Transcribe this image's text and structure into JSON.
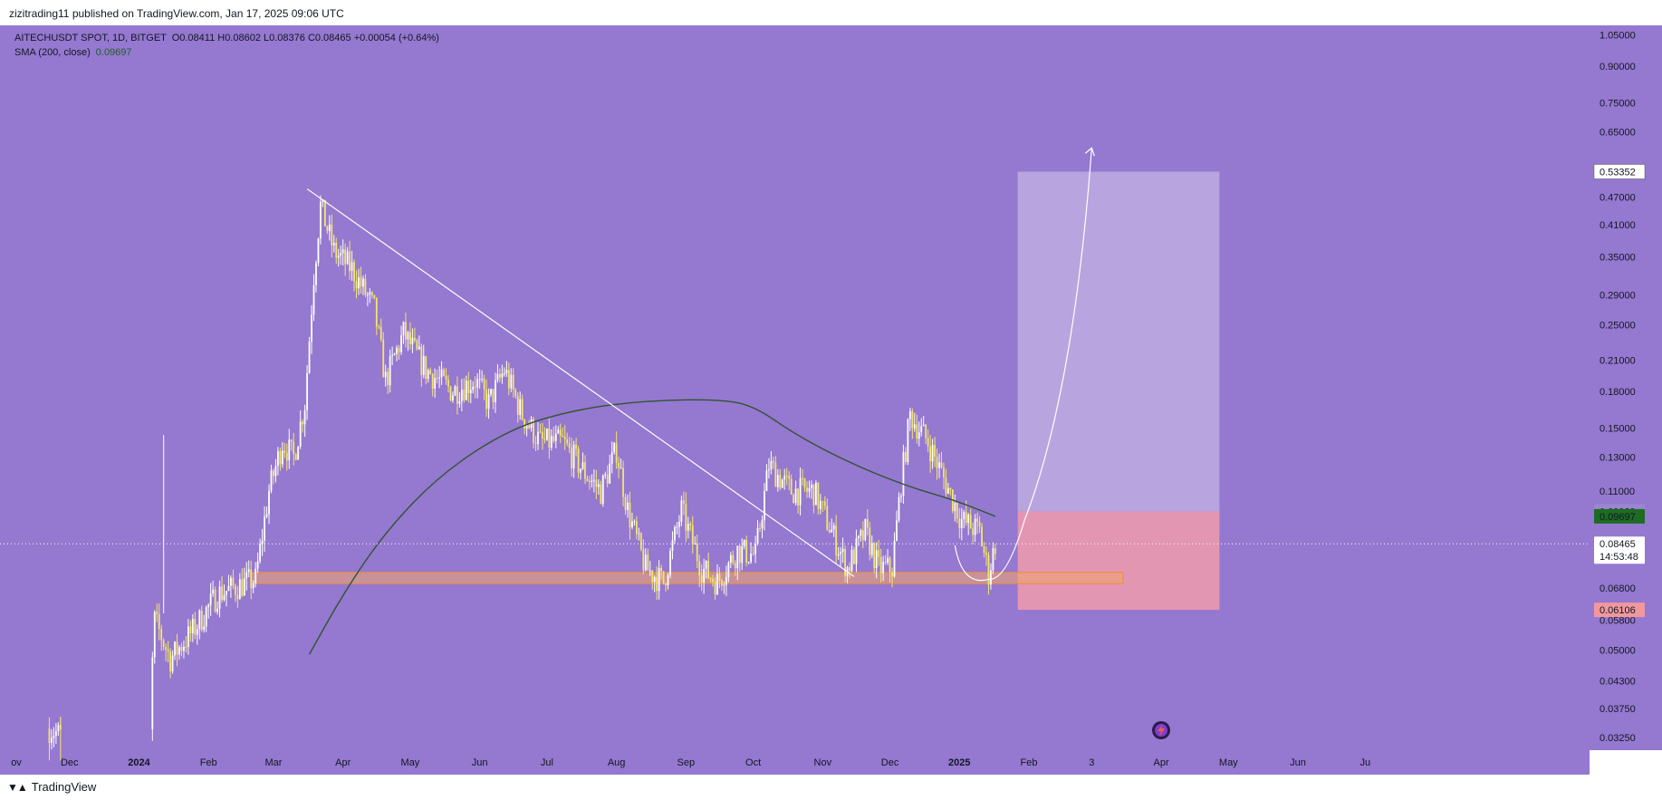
{
  "header": {
    "published": "zizitrading11 published on TradingView.com, Jan 17, 2025 09:06 UTC"
  },
  "footer": {
    "brand": "TradingView"
  },
  "legend": {
    "symbol": "AITECHUSDT SPOT, 1D, BITGET",
    "ohlc": "O0.08411 H0.08602 L0.08376 C0.08465 +0.00054 (+0.64%)",
    "indicator_name": "SMA (200, close)",
    "indicator_value": "0.09697"
  },
  "colors": {
    "background": "#9578d0",
    "candle_up": "#ffffff",
    "candle_down": "#f4e66a",
    "sma": "#2f5530",
    "trendline": "#ffffff",
    "support_zone": "#f2a86a",
    "target_zone": "#b9a6de",
    "stop_zone": "#e396b2",
    "sma_badge": "#1e6b24",
    "stop_badge": "#f0989e"
  },
  "chart_data": {
    "type": "candlestick",
    "x_axis": {
      "labels": [
        "ov",
        "Dec",
        "2024",
        "Feb",
        "Mar",
        "Apr",
        "May",
        "Jun",
        "Jul",
        "Aug",
        "Sep",
        "Oct",
        "Nov",
        "Dec",
        "2025",
        "Feb",
        "3",
        "Apr",
        "May",
        "Jun",
        "Ju"
      ]
    },
    "y_axis": {
      "scale": "log",
      "ticks": [
        "1.05000",
        "0.90000",
        "0.75000",
        "0.65000",
        "0.47000",
        "0.41000",
        "0.35000",
        "0.29000",
        "0.25000",
        "0.21000",
        "0.18000",
        "0.15000",
        "0.13000",
        "0.11000",
        "0.06800",
        "0.05800",
        "0.05000",
        "0.04300",
        "0.03750",
        "0.03250"
      ],
      "range": [
        0.0305,
        1.1
      ]
    },
    "price_markers": [
      {
        "value": 0.53352,
        "label": "0.53352",
        "role": "target"
      },
      {
        "value": 0.09939,
        "label": "0.09939",
        "role": "last-high"
      },
      {
        "value": 0.09697,
        "label": "0.09697",
        "role": "sma"
      },
      {
        "value": 0.08465,
        "label": "0.08465",
        "role": "last-price"
      },
      {
        "value": 0.06106,
        "label": "0.06106",
        "role": "stop"
      }
    ],
    "countdown": "14:53:48",
    "price_path": [
      [
        "2023-11-22",
        0.034
      ],
      [
        "2023-12-20",
        0.028
      ],
      [
        "2024-01-05",
        0.031
      ],
      [
        "2024-01-08",
        0.058
      ],
      [
        "2024-01-15",
        0.048
      ],
      [
        "2024-01-25",
        0.055
      ],
      [
        "2024-02-05",
        0.066
      ],
      [
        "2024-02-15",
        0.069
      ],
      [
        "2024-02-22",
        0.071
      ],
      [
        "2024-02-28",
        0.11
      ],
      [
        "2024-03-05",
        0.14
      ],
      [
        "2024-03-10",
        0.13
      ],
      [
        "2024-03-15",
        0.17
      ],
      [
        "2024-03-19",
        0.32
      ],
      [
        "2024-03-22",
        0.45
      ],
      [
        "2024-03-28",
        0.36
      ],
      [
        "2024-04-05",
        0.33
      ],
      [
        "2024-04-15",
        0.27
      ],
      [
        "2024-04-20",
        0.19
      ],
      [
        "2024-04-28",
        0.24
      ],
      [
        "2024-05-08",
        0.2
      ],
      [
        "2024-05-20",
        0.18
      ],
      [
        "2024-05-30",
        0.19
      ],
      [
        "2024-06-05",
        0.17
      ],
      [
        "2024-06-12",
        0.2
      ],
      [
        "2024-06-20",
        0.16
      ],
      [
        "2024-06-28",
        0.14
      ],
      [
        "2024-07-08",
        0.14
      ],
      [
        "2024-07-18",
        0.12
      ],
      [
        "2024-07-25",
        0.11
      ],
      [
        "2024-08-01",
        0.135
      ],
      [
        "2024-08-06",
        0.1
      ],
      [
        "2024-08-14",
        0.075
      ],
      [
        "2024-08-22",
        0.07
      ],
      [
        "2024-08-30",
        0.1
      ],
      [
        "2024-09-08",
        0.075
      ],
      [
        "2024-09-15",
        0.07
      ],
      [
        "2024-09-24",
        0.082
      ],
      [
        "2024-10-02",
        0.08
      ],
      [
        "2024-10-08",
        0.125
      ],
      [
        "2024-10-18",
        0.11
      ],
      [
        "2024-10-28",
        0.11
      ],
      [
        "2024-11-05",
        0.09
      ],
      [
        "2024-11-12",
        0.075
      ],
      [
        "2024-11-20",
        0.09
      ],
      [
        "2024-11-26",
        0.075
      ],
      [
        "2024-12-02",
        0.075
      ],
      [
        "2024-12-06",
        0.115
      ],
      [
        "2024-12-10",
        0.16
      ],
      [
        "2024-12-18",
        0.14
      ],
      [
        "2024-12-24",
        0.12
      ],
      [
        "2025-01-02",
        0.095
      ],
      [
        "2025-01-10",
        0.09
      ],
      [
        "2025-01-14",
        0.073
      ],
      [
        "2025-01-17",
        0.085
      ]
    ],
    "sma_path": [
      [
        "2024-03-17",
        0.049
      ],
      [
        "2024-04-01",
        0.066
      ],
      [
        "2024-04-20",
        0.09
      ],
      [
        "2024-05-15",
        0.12
      ],
      [
        "2024-06-15",
        0.15
      ],
      [
        "2024-07-15",
        0.165
      ],
      [
        "2024-08-15",
        0.172
      ],
      [
        "2024-09-15",
        0.173
      ],
      [
        "2024-10-01",
        0.168
      ],
      [
        "2024-10-20",
        0.145
      ],
      [
        "2024-11-15",
        0.125
      ],
      [
        "2024-12-10",
        0.112
      ],
      [
        "2024-12-30",
        0.105
      ],
      [
        "2025-01-17",
        0.09697
      ]
    ],
    "drawings": {
      "trendline": {
        "from": [
          "2024-03-16",
          0.49
        ],
        "to": [
          "2024-11-15",
          0.072
        ]
      },
      "support_zone": {
        "from_date": "2024-02-20",
        "to_date": "2025-03-15",
        "low": 0.0695,
        "high": 0.0735
      },
      "target_zone": {
        "from_date": "2025-01-27",
        "to_date": "2025-04-27",
        "low": 0.09939,
        "high": 0.53352
      },
      "stop_zone": {
        "from_date": "2025-01-27",
        "to_date": "2025-04-27",
        "low": 0.06106,
        "high": 0.09939
      },
      "projection_arrow": {
        "start": [
          "2024-12-30",
          0.084
        ],
        "bottom": [
          "2025-01-14",
          0.071
        ],
        "mid": [
          "2025-01-30",
          0.095
        ],
        "end": [
          "2025-03-01",
          0.6
        ]
      }
    }
  }
}
